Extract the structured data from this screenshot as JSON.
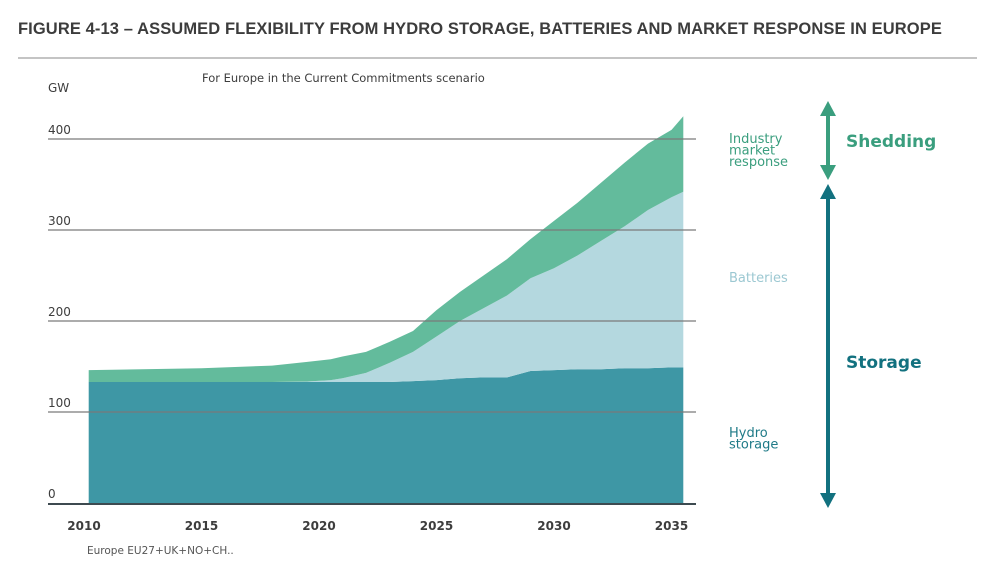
{
  "figure": {
    "title": "FIGURE 4-13 – ASSUMED FLEXIBILITY FROM HYDRO STORAGE, BATTERIES AND MARKET RESPONSE IN EUROPE"
  },
  "chart_data": {
    "type": "area",
    "stacked": true,
    "title": "FIGURE 4-13 – ASSUMED FLEXIBILITY FROM HYDRO STORAGE, BATTERIES AND MARKET RESPONSE IN EUROPE",
    "subtitle": "For Europe in the Current Commitments scenario",
    "ylabel": "GW",
    "xlabel": "",
    "footnote": "Europe EU27+UK+NO+CH..",
    "ylim": [
      0,
      430
    ],
    "xlim": [
      2010,
      2035.5
    ],
    "yticks": [
      0,
      100,
      200,
      300,
      400
    ],
    "xticks": [
      2010,
      2015,
      2020,
      2025,
      2030,
      2035
    ],
    "grid": "horizontal",
    "x": [
      2010.2,
      2015,
      2018,
      2019.5,
      2020.5,
      2021,
      2022,
      2023,
      2024,
      2025,
      2026,
      2027,
      2028,
      2029,
      2030,
      2031,
      2032,
      2033,
      2034,
      2035,
      2035.5
    ],
    "series": [
      {
        "name": "Hydro storage",
        "label": "Hydro storage",
        "label_lines": [
          "Hydro",
          "storage"
        ],
        "color": "#3e97a5",
        "values": [
          133,
          133,
          133,
          133,
          133,
          133,
          133,
          133,
          134,
          135,
          137,
          138,
          138,
          145,
          146,
          147,
          147,
          148,
          148,
          149,
          149
        ]
      },
      {
        "name": "Batteries",
        "label": "Batteries",
        "label_lines": [
          "Batteries"
        ],
        "color": "#b4d8df",
        "values": [
          0,
          0,
          0,
          0.5,
          2,
          4,
          10,
          21,
          32,
          48,
          63,
          76,
          90,
          102,
          112,
          125,
          141,
          156,
          174,
          187,
          193
        ]
      },
      {
        "name": "Industry market response",
        "label": "Industry market response",
        "label_lines": [
          "Industry",
          "market",
          "response"
        ],
        "color": "#63bb9c",
        "values": [
          13,
          15,
          18,
          21.5,
          23,
          24,
          23,
          23,
          23,
          29,
          32,
          36,
          40,
          43,
          52,
          58,
          64,
          70,
          73,
          74,
          83
        ]
      }
    ],
    "annotations": [
      {
        "text": "Shedding",
        "color": "#3a9e7e",
        "spans": [
          "Industry market response"
        ],
        "arrow": "double"
      },
      {
        "text": "Storage",
        "color": "#12717f",
        "spans": [
          "Batteries",
          "Hydro storage"
        ],
        "arrow": "double"
      }
    ],
    "label_colors": {
      "industry": "#3a9e7e",
      "batteries": "#9cc8d2",
      "hydro": "#1f7a87"
    }
  }
}
